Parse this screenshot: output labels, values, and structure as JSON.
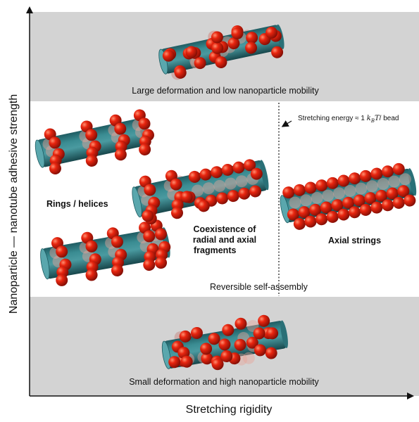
{
  "axes": {
    "x_title": "Stretching rigidity",
    "y_title": "Nanoparticle — nanotube adhesive strength"
  },
  "regions": {
    "top": "Large deformation and low nanoparticle mobility",
    "middle": "Reversible self-assembly",
    "bottom": "Small deformation and high nanoparticle mobility"
  },
  "phases": {
    "rings": "Rings / helices",
    "coexist_1": "Coexistence of",
    "coexist_2": "radial and axial",
    "coexist_3": "fragments",
    "axial": "Axial strings"
  },
  "annotation": {
    "prefix": "Stretching energy ≈ 1",
    "math": "k",
    "sub": "B",
    "math2": "T",
    "suffix": "/ bead"
  },
  "colors": {
    "band": "#d3d3d3",
    "tube": "#2f7f86",
    "tube_dark": "#1d5a60",
    "bead": "#d8200f",
    "bead_dark": "#8c0f05"
  }
}
